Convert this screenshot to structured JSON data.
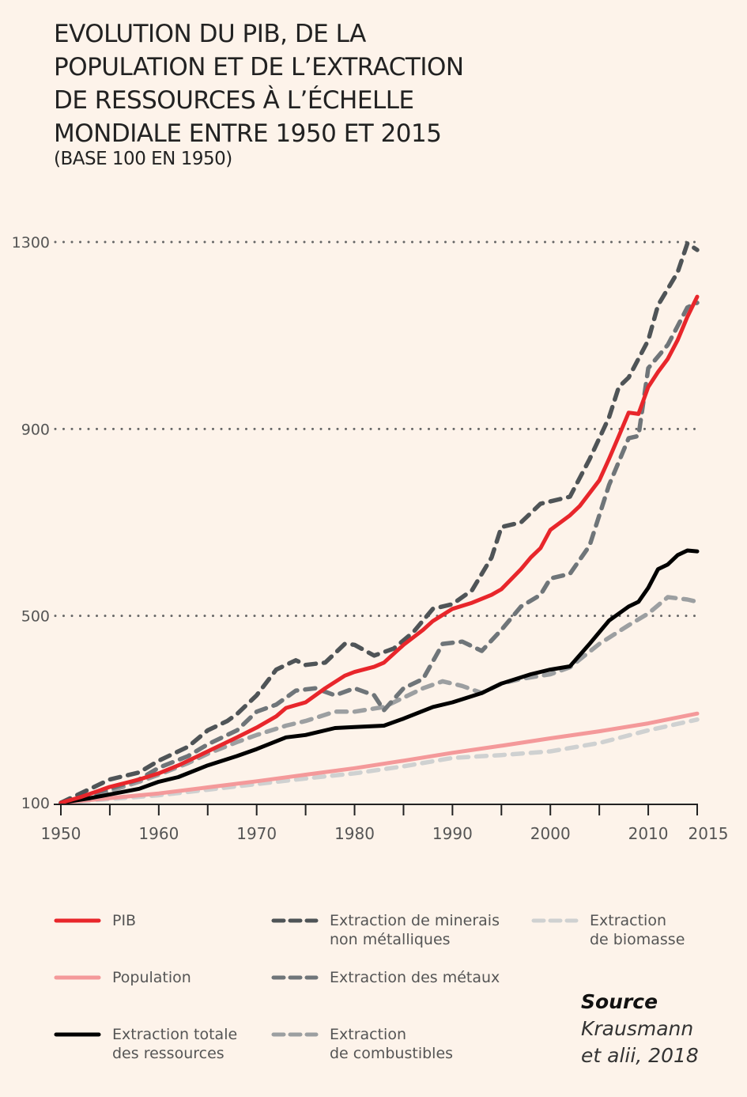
{
  "title_lines": [
    "EVOLUTION DU PIB, DE LA",
    "POPULATION ET DE L’EXTRACTION",
    "DE RESSOURCES À L’ÉCHELLE",
    "MONDIALE ENTRE 1950 ET 2015"
  ],
  "subtitle": "(BASE 100 EN 1950)",
  "source": {
    "heading": "Source",
    "text": "Krausmann\net alii, 2018"
  },
  "chart_data": {
    "type": "line",
    "title": "EVOLUTION DU PIB, DE LA POPULATION ET DE L’EXTRACTION DE RESSOURCES À L’ÉCHELLE MONDIALE ENTRE 1950 ET 2015",
    "subtitle": "(BASE 100 EN 1950)",
    "xlabel": "",
    "ylabel": "",
    "xlim": [
      1950,
      2015
    ],
    "ylim": [
      100,
      1300
    ],
    "x_ticks": [
      1950,
      1955,
      1960,
      1965,
      1970,
      1975,
      1980,
      1985,
      1990,
      1995,
      2000,
      2005,
      2010,
      2015
    ],
    "x_tick_labels": [
      "1950",
      "",
      "1960",
      "",
      "1970",
      "",
      "1980",
      "",
      "1990",
      "",
      "2000",
      "",
      "2010",
      "2015"
    ],
    "y_ticks": [
      100,
      500,
      900,
      1300
    ],
    "y_tick_labels": [
      "100",
      "500",
      "900",
      "1300"
    ],
    "gridlines": [
      500,
      900,
      1300
    ],
    "grid_style": "dotted",
    "legend_position": "bottom",
    "series": [
      {
        "name": "PIB",
        "legend": "PIB",
        "color": "#e8262b",
        "style": "solid",
        "points": [
          [
            1950,
            100
          ],
          [
            1952,
            112
          ],
          [
            1955,
            134
          ],
          [
            1958,
            150
          ],
          [
            1960,
            163
          ],
          [
            1962,
            180
          ],
          [
            1965,
            210
          ],
          [
            1968,
            240
          ],
          [
            1970,
            261
          ],
          [
            1972,
            285
          ],
          [
            1973,
            303
          ],
          [
            1975,
            315
          ],
          [
            1977,
            345
          ],
          [
            1979,
            372
          ],
          [
            1980,
            380
          ],
          [
            1982,
            391
          ],
          [
            1983,
            400
          ],
          [
            1985,
            438
          ],
          [
            1987,
            470
          ],
          [
            1988,
            489
          ],
          [
            1990,
            515
          ],
          [
            1992,
            528
          ],
          [
            1994,
            545
          ],
          [
            1995,
            557
          ],
          [
            1997,
            600
          ],
          [
            1998,
            625
          ],
          [
            1999,
            645
          ],
          [
            2000,
            684
          ],
          [
            2002,
            715
          ],
          [
            2003,
            735
          ],
          [
            2005,
            790
          ],
          [
            2006,
            836
          ],
          [
            2007,
            885
          ],
          [
            2008,
            935
          ],
          [
            2009,
            932
          ],
          [
            2010,
            990
          ],
          [
            2011,
            1022
          ],
          [
            2012,
            1050
          ],
          [
            2013,
            1090
          ],
          [
            2014,
            1140
          ],
          [
            2015,
            1183
          ]
        ]
      },
      {
        "name": "Population",
        "legend": "Population",
        "color": "#f4999a",
        "style": "solid",
        "points": [
          [
            1950,
            100
          ],
          [
            1955,
            110
          ],
          [
            1960,
            120
          ],
          [
            1965,
            133
          ],
          [
            1970,
            146
          ],
          [
            1975,
            160
          ],
          [
            1980,
            174
          ],
          [
            1985,
            190
          ],
          [
            1990,
            207
          ],
          [
            1995,
            222
          ],
          [
            2000,
            238
          ],
          [
            2005,
            253
          ],
          [
            2010,
            270
          ],
          [
            2015,
            291
          ]
        ]
      },
      {
        "name": "Extraction totale des ressources",
        "legend": "Extraction totale\ndes ressources",
        "color": "#000000",
        "style": "solid",
        "points": [
          [
            1950,
            100
          ],
          [
            1953,
            110
          ],
          [
            1955,
            118
          ],
          [
            1958,
            130
          ],
          [
            1960,
            145
          ],
          [
            1962,
            155
          ],
          [
            1965,
            180
          ],
          [
            1968,
            200
          ],
          [
            1970,
            215
          ],
          [
            1973,
            240
          ],
          [
            1975,
            245
          ],
          [
            1978,
            260
          ],
          [
            1980,
            262
          ],
          [
            1983,
            265
          ],
          [
            1985,
            280
          ],
          [
            1988,
            305
          ],
          [
            1990,
            315
          ],
          [
            1993,
            335
          ],
          [
            1995,
            355
          ],
          [
            1998,
            375
          ],
          [
            2000,
            385
          ],
          [
            2002,
            392
          ],
          [
            2004,
            440
          ],
          [
            2006,
            490
          ],
          [
            2008,
            520
          ],
          [
            2009,
            530
          ],
          [
            2010,
            560
          ],
          [
            2011,
            600
          ],
          [
            2012,
            610
          ],
          [
            2013,
            630
          ],
          [
            2014,
            640
          ],
          [
            2015,
            638
          ]
        ]
      },
      {
        "name": "Extraction de minerais non métalliques",
        "legend": "Extraction de minerais\nnon métalliques",
        "color": "#4f5457",
        "style": "dashed",
        "points": [
          [
            1950,
            100
          ],
          [
            1953,
            130
          ],
          [
            1955,
            150
          ],
          [
            1958,
            165
          ],
          [
            1960,
            190
          ],
          [
            1963,
            220
          ],
          [
            1965,
            255
          ],
          [
            1967,
            275
          ],
          [
            1968,
            290
          ],
          [
            1970,
            330
          ],
          [
            1972,
            385
          ],
          [
            1974,
            405
          ],
          [
            1975,
            395
          ],
          [
            1977,
            400
          ],
          [
            1979,
            440
          ],
          [
            1980,
            438
          ],
          [
            1982,
            415
          ],
          [
            1984,
            430
          ],
          [
            1986,
            465
          ],
          [
            1988,
            515
          ],
          [
            1990,
            525
          ],
          [
            1992,
            555
          ],
          [
            1994,
            625
          ],
          [
            1995,
            690
          ],
          [
            1997,
            700
          ],
          [
            1999,
            740
          ],
          [
            2001,
            750
          ],
          [
            2002,
            755
          ],
          [
            2004,
            835
          ],
          [
            2006,
            925
          ],
          [
            2007,
            990
          ],
          [
            2008,
            1010
          ],
          [
            2010,
            1090
          ],
          [
            2011,
            1165
          ],
          [
            2013,
            1235
          ],
          [
            2014,
            1297
          ],
          [
            2015,
            1283
          ]
        ]
      },
      {
        "name": "Extraction des métaux",
        "legend": "Extraction des métaux",
        "color": "#6f7579",
        "style": "dashed",
        "points": [
          [
            1950,
            100
          ],
          [
            1953,
            118
          ],
          [
            1955,
            130
          ],
          [
            1958,
            150
          ],
          [
            1960,
            175
          ],
          [
            1963,
            200
          ],
          [
            1965,
            225
          ],
          [
            1968,
            255
          ],
          [
            1970,
            295
          ],
          [
            1972,
            310
          ],
          [
            1974,
            340
          ],
          [
            1976,
            345
          ],
          [
            1978,
            330
          ],
          [
            1980,
            345
          ],
          [
            1982,
            330
          ],
          [
            1983,
            298
          ],
          [
            1985,
            345
          ],
          [
            1987,
            365
          ],
          [
            1989,
            440
          ],
          [
            1991,
            445
          ],
          [
            1993,
            425
          ],
          [
            1995,
            470
          ],
          [
            1997,
            520
          ],
          [
            1999,
            545
          ],
          [
            2000,
            580
          ],
          [
            2002,
            590
          ],
          [
            2004,
            650
          ],
          [
            2006,
            780
          ],
          [
            2008,
            880
          ],
          [
            2009,
            885
          ],
          [
            2010,
            1030
          ],
          [
            2012,
            1080
          ],
          [
            2014,
            1160
          ],
          [
            2015,
            1170
          ]
        ]
      },
      {
        "name": "Extraction de combustibles",
        "legend": "Extraction\nde combustibles",
        "color": "#9c9fa1",
        "style": "dashed",
        "points": [
          [
            1950,
            100
          ],
          [
            1953,
            112
          ],
          [
            1955,
            125
          ],
          [
            1958,
            145
          ],
          [
            1960,
            160
          ],
          [
            1963,
            185
          ],
          [
            1965,
            205
          ],
          [
            1968,
            230
          ],
          [
            1970,
            245
          ],
          [
            1973,
            265
          ],
          [
            1975,
            275
          ],
          [
            1978,
            295
          ],
          [
            1980,
            295
          ],
          [
            1983,
            305
          ],
          [
            1985,
            325
          ],
          [
            1987,
            345
          ],
          [
            1989,
            360
          ],
          [
            1991,
            350
          ],
          [
            1993,
            335
          ],
          [
            1995,
            355
          ],
          [
            1997,
            365
          ],
          [
            2000,
            375
          ],
          [
            2002,
            390
          ],
          [
            2005,
            440
          ],
          [
            2008,
            480
          ],
          [
            2010,
            505
          ],
          [
            2012,
            540
          ],
          [
            2014,
            535
          ],
          [
            2015,
            530
          ]
        ]
      },
      {
        "name": "Extraction de biomasse",
        "legend": "Extraction\nde biomasse",
        "color": "#cfd1d1",
        "style": "dashed",
        "points": [
          [
            1950,
            100
          ],
          [
            1955,
            108
          ],
          [
            1960,
            116
          ],
          [
            1965,
            128
          ],
          [
            1970,
            140
          ],
          [
            1975,
            152
          ],
          [
            1980,
            163
          ],
          [
            1985,
            178
          ],
          [
            1990,
            196
          ],
          [
            1995,
            202
          ],
          [
            2000,
            210
          ],
          [
            2005,
            228
          ],
          [
            2010,
            255
          ],
          [
            2015,
            278
          ]
        ]
      }
    ]
  }
}
